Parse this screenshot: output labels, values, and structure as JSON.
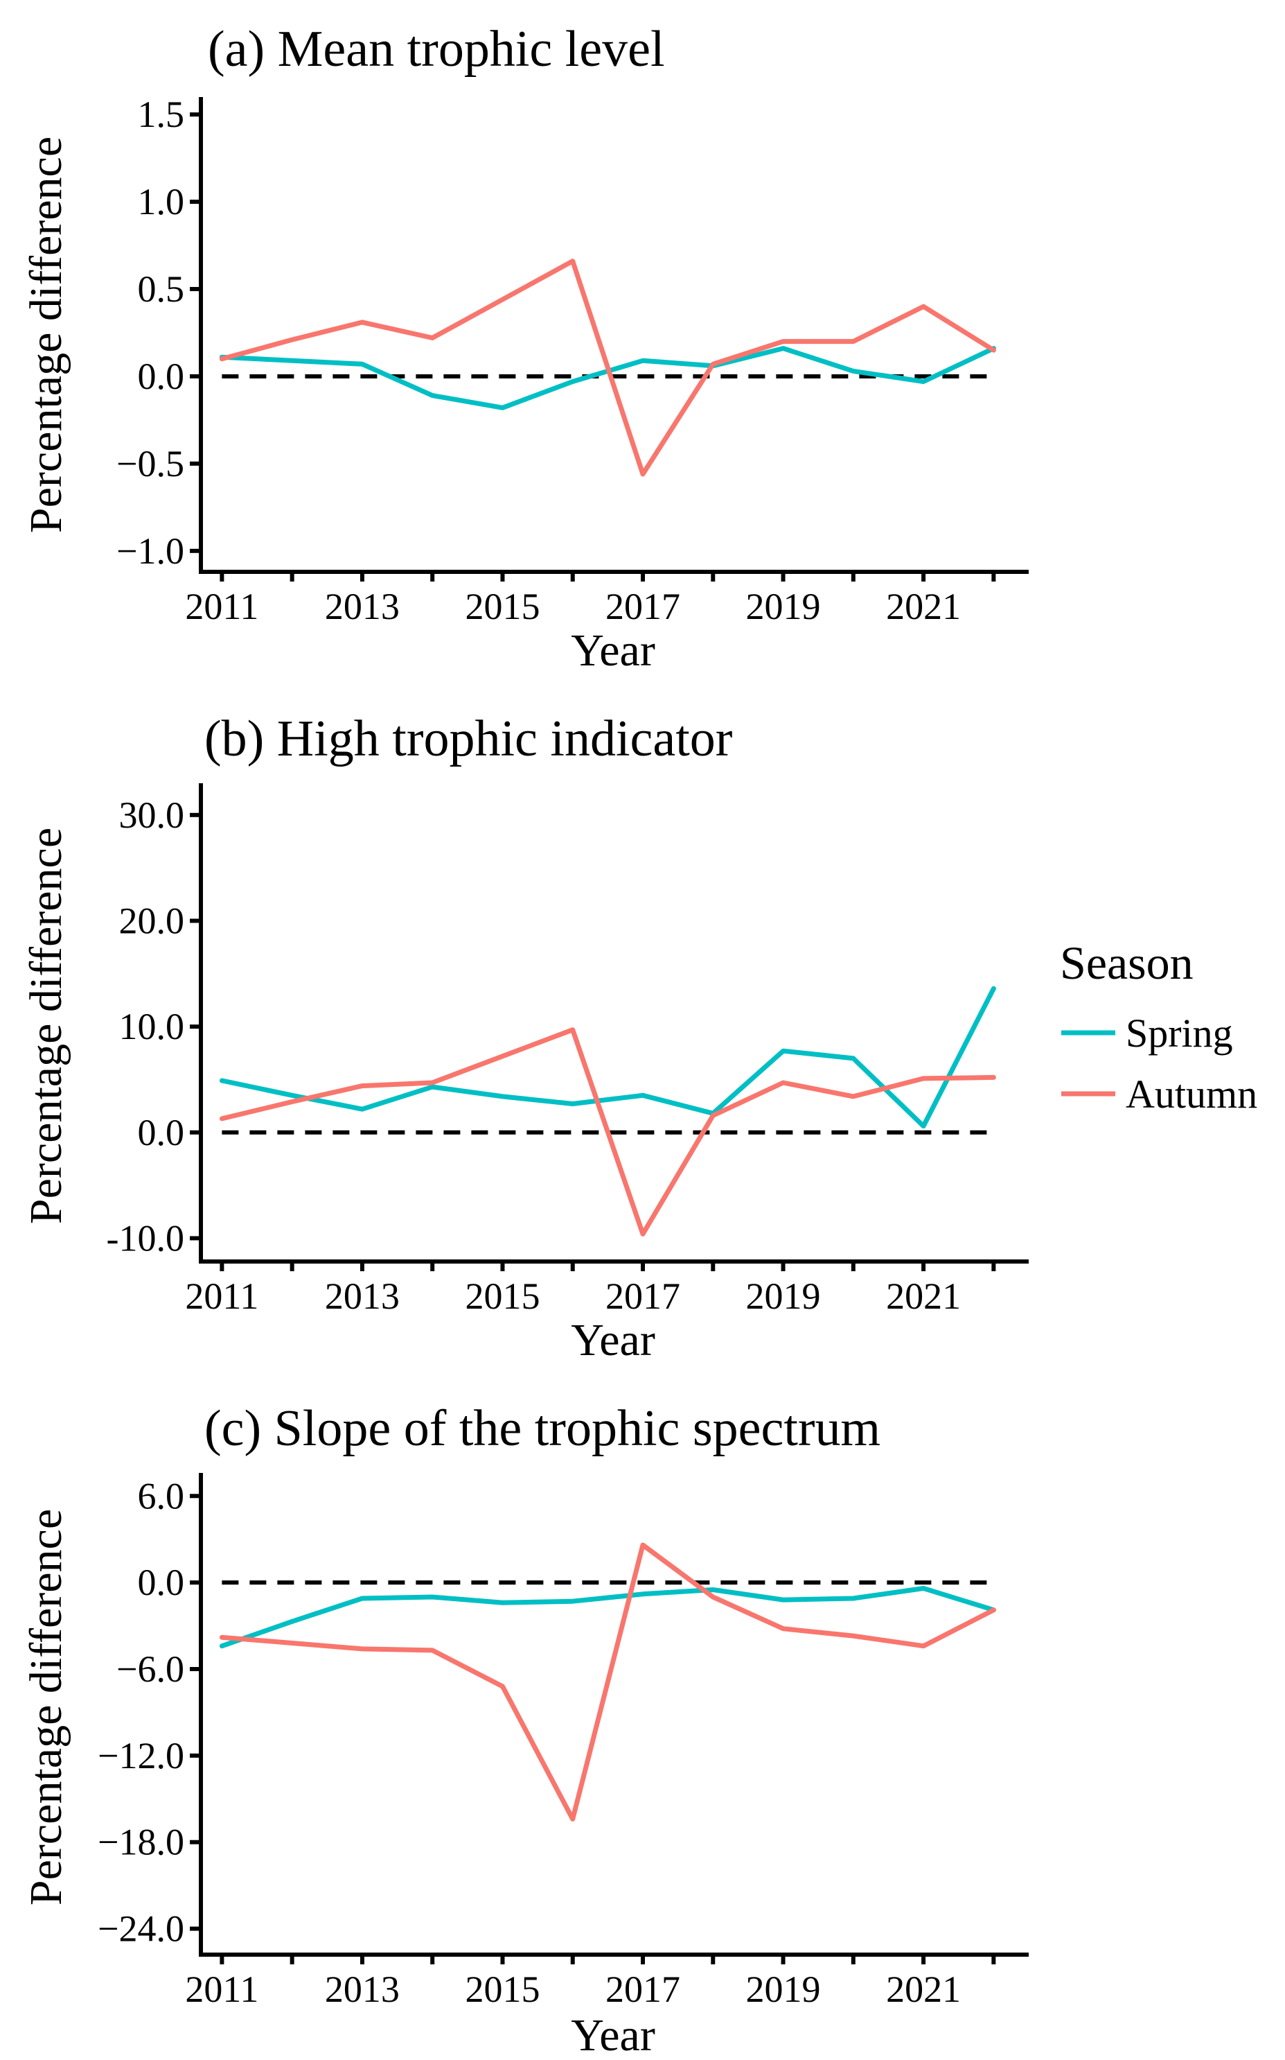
{
  "colors": {
    "spring": "#00BFC4",
    "autumn": "#F8766D"
  },
  "legend": {
    "title": "Season",
    "items": [
      {
        "label": "Spring",
        "color": "#00BFC4"
      },
      {
        "label": "Autumn",
        "color": "#F8766D"
      }
    ]
  },
  "chart_data": [
    {
      "type": "line",
      "title": "(a) Mean trophic level",
      "xlabel": "Year",
      "ylabel": "Percentage difference",
      "xlim": [
        2010.7,
        2022.5
      ],
      "ylim": [
        -1.12,
        1.6
      ],
      "yticks": [
        "1.5",
        "1.0",
        "0.5",
        "0.0",
        "−0.5",
        "−1.0"
      ],
      "ytick_values": [
        1.5,
        1.0,
        0.5,
        0.0,
        -0.5,
        -1.0
      ],
      "xticks": [
        "2011",
        "2013",
        "2015",
        "2017",
        "2019",
        "2021"
      ],
      "xtick_values": [
        2011,
        2013,
        2015,
        2017,
        2019,
        2021
      ],
      "reference_line": 0,
      "x": [
        2011,
        2012,
        2013,
        2014,
        2015,
        2016,
        2017,
        2018,
        2019,
        2020,
        2021,
        2022
      ],
      "series": [
        {
          "name": "Spring",
          "values": [
            0.11,
            0.09,
            0.07,
            -0.11,
            -0.18,
            -0.03,
            0.09,
            0.06,
            0.16,
            0.03,
            -0.03,
            0.16
          ]
        },
        {
          "name": "Autumn",
          "values": [
            0.1,
            0.21,
            0.31,
            0.22,
            0.44,
            0.66,
            -0.56,
            0.07,
            0.2,
            0.2,
            0.4,
            0.15
          ]
        }
      ]
    },
    {
      "type": "line",
      "title": "(b) High trophic indicator",
      "xlabel": "Year",
      "ylabel": "Percentage difference",
      "xlim": [
        2010.7,
        2022.5
      ],
      "ylim": [
        -12.2,
        33.0
      ],
      "yticks": [
        "30.0",
        "20.0",
        "10.0",
        "0.0",
        "-10.0"
      ],
      "ytick_values": [
        30,
        20,
        10,
        0,
        -10
      ],
      "xticks": [
        "2011",
        "2013",
        "2015",
        "2017",
        "2019",
        "2021"
      ],
      "xtick_values": [
        2011,
        2013,
        2015,
        2017,
        2019,
        2021
      ],
      "reference_line": 0,
      "x": [
        2011,
        2012,
        2013,
        2014,
        2015,
        2016,
        2017,
        2018,
        2019,
        2020,
        2021,
        2022
      ],
      "series": [
        {
          "name": "Spring",
          "values": [
            4.9,
            3.5,
            2.2,
            4.3,
            3.4,
            2.7,
            3.5,
            1.8,
            7.7,
            7.0,
            0.6,
            13.6
          ]
        },
        {
          "name": "Autumn",
          "values": [
            1.3,
            2.9,
            4.4,
            4.7,
            7.2,
            9.7,
            -9.6,
            1.6,
            4.7,
            3.4,
            5.1,
            5.2
          ]
        }
      ]
    },
    {
      "type": "line",
      "title": "(c) Slope of the trophic spectrum",
      "xlabel": "Year",
      "ylabel": "Percentage difference",
      "xlim": [
        2010.7,
        2022.5
      ],
      "ylim": [
        -25.8,
        7.6
      ],
      "yticks": [
        "6.0",
        "0.0",
        "−6.0",
        "−12.0",
        "−18.0",
        "−24.0"
      ],
      "ytick_values": [
        6,
        0,
        -6,
        -12,
        -18,
        -24
      ],
      "xticks": [
        "2011",
        "2013",
        "2015",
        "2017",
        "2019",
        "2021"
      ],
      "xtick_values": [
        2011,
        2013,
        2015,
        2017,
        2019,
        2021
      ],
      "reference_line": 0,
      "x": [
        2011,
        2012,
        2013,
        2014,
        2015,
        2016,
        2017,
        2018,
        2019,
        2020,
        2021,
        2022
      ],
      "series": [
        {
          "name": "Spring",
          "values": [
            -4.4,
            -2.7,
            -1.1,
            -1.0,
            -1.4,
            -1.3,
            -0.8,
            -0.5,
            -1.2,
            -1.1,
            -0.4,
            -1.9
          ]
        },
        {
          "name": "Autumn",
          "values": [
            -3.8,
            -4.2,
            -4.6,
            -4.7,
            -7.2,
            -16.4,
            2.6,
            -1.0,
            -3.2,
            -3.7,
            -4.4,
            -1.9
          ]
        }
      ]
    }
  ]
}
